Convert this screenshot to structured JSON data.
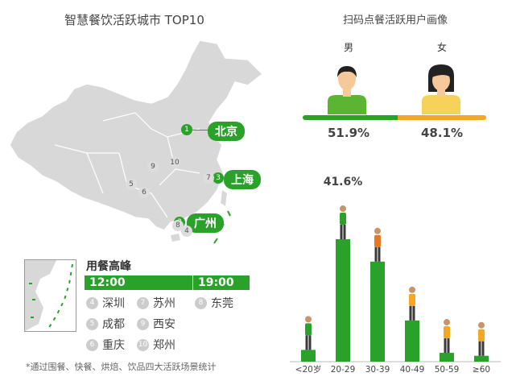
{
  "left_title": "智慧餐饮活跃城市 TOP10",
  "right_title": "扫码点餐活跃用户画像",
  "map_cities": [
    {
      "rank": "1",
      "name": "北京"
    },
    {
      "rank": "3",
      "name": "上海"
    },
    {
      "rank": "2",
      "name": "广州"
    }
  ],
  "map_small_ranks": [
    "9",
    "10",
    "5",
    "6",
    "7",
    "8",
    "4"
  ],
  "peak": {
    "title": "用餐高峰",
    "times": [
      "12:00",
      "19:00"
    ],
    "cities": [
      {
        "rank": "4",
        "name": "深圳"
      },
      {
        "rank": "5",
        "name": "成都"
      },
      {
        "rank": "6",
        "name": "重庆"
      },
      {
        "rank": "7",
        "name": "苏州"
      },
      {
        "rank": "9",
        "name": "西安"
      },
      {
        "rank": "10",
        "name": "郑州"
      },
      {
        "rank": "8",
        "name": "东莞"
      }
    ]
  },
  "gender": {
    "male_label": "男",
    "female_label": "女",
    "male_pct": "51.9%",
    "female_pct": "48.1%",
    "male_share": 51.9,
    "female_share": 48.1,
    "male_color": "#2aa22a",
    "female_color": "#f5a623"
  },
  "chart_data": {
    "type": "bar",
    "categories": [
      "<20岁",
      "20-29",
      "30-39",
      "40-49",
      "50-59",
      "≥60"
    ],
    "values": [
      4,
      41.6,
      34,
      14,
      3,
      2
    ],
    "data_labels": [
      "",
      "41.6%",
      "",
      "",
      "",
      ""
    ],
    "xlabel": "",
    "ylabel": ""
  },
  "footnote": "*通过围餐、快餐、烘焙、饮品四大活跃场景统计"
}
